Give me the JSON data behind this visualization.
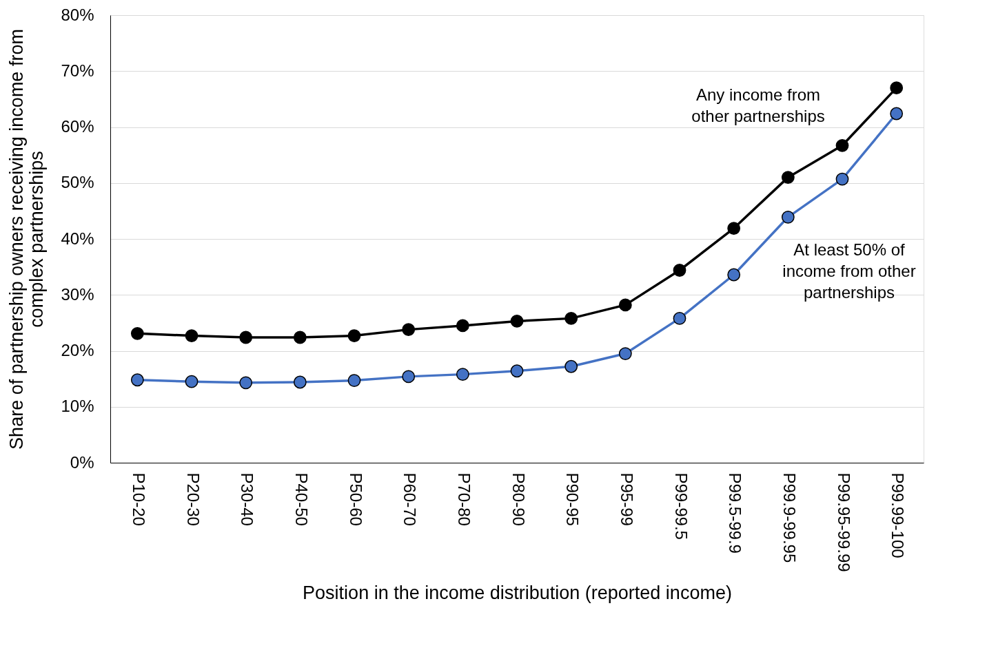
{
  "chart_data": {
    "type": "line",
    "xlabel": "Position in the income distribution (reported income)",
    "ylabel": "Share of partnership owners receiving income from\ncomplex partnerships",
    "categories": [
      "P10-20",
      "P20-30",
      "P30-40",
      "P40-50",
      "P50-60",
      "P60-70",
      "P70-80",
      "P80-90",
      "P90-95",
      "P95-99",
      "P99-99.5",
      "P99.5-99.9",
      "P99.9-99.95",
      "P99.95-99.99",
      "P99.99-100"
    ],
    "series": [
      {
        "name": "Any income from\nother partnerships",
        "color": "#000000",
        "values": [
          23.1,
          22.7,
          22.4,
          22.4,
          22.7,
          23.8,
          24.5,
          25.3,
          25.8,
          28.2,
          34.4,
          41.9,
          51.0,
          56.7,
          67.0
        ]
      },
      {
        "name": "At least 50% of\nincome from other\npartnerships",
        "color": "#4472c4",
        "values": [
          14.8,
          14.5,
          14.3,
          14.4,
          14.7,
          15.4,
          15.8,
          16.4,
          17.2,
          19.5,
          25.8,
          33.6,
          43.9,
          50.7,
          62.4
        ]
      }
    ],
    "ylim": [
      0,
      80
    ],
    "yticks": [
      {
        "value": 0,
        "label": "0%"
      },
      {
        "value": 10,
        "label": "10%"
      },
      {
        "value": 20,
        "label": "20%"
      },
      {
        "value": 30,
        "label": "30%"
      },
      {
        "value": 40,
        "label": "40%"
      },
      {
        "value": 50,
        "label": "50%"
      },
      {
        "value": 60,
        "label": "60%"
      },
      {
        "value": 70,
        "label": "70%"
      },
      {
        "value": 80,
        "label": "80%"
      }
    ],
    "grid": "y",
    "marker": "circle",
    "line_style": "solid",
    "legend": false
  }
}
